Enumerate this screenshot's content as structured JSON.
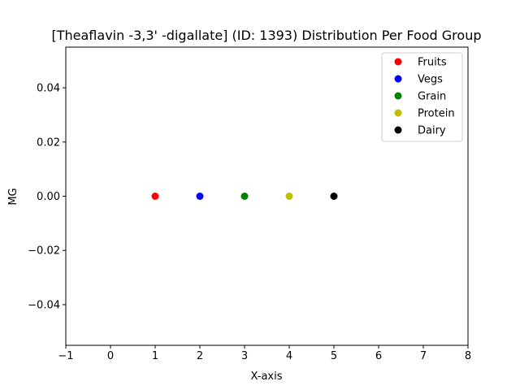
{
  "chart_data": {
    "type": "scatter",
    "title": "[Theaflavin -3,3' -digallate] (ID: 1393) Distribution Per Food Group",
    "xlabel": "X-axis",
    "ylabel": "MG",
    "xlim": [
      -1,
      8
    ],
    "ylim": [
      -0.055,
      0.055
    ],
    "xticks": [
      -1,
      0,
      1,
      2,
      3,
      4,
      5,
      6,
      7,
      8
    ],
    "xtick_labels": [
      "−1",
      "0",
      "1",
      "2",
      "3",
      "4",
      "5",
      "6",
      "7",
      "8"
    ],
    "yticks": [
      -0.04,
      -0.02,
      0.0,
      0.02,
      0.04
    ],
    "ytick_labels": [
      "−0.04",
      "−0.02",
      "0.00",
      "0.02",
      "0.04"
    ],
    "grid": false,
    "legend_position": "top-right",
    "series": [
      {
        "name": "Fruits",
        "color": "#ff0000",
        "points": [
          {
            "x": 1,
            "y": 0.0
          }
        ]
      },
      {
        "name": "Vegs",
        "color": "#0000ff",
        "points": [
          {
            "x": 2,
            "y": 0.0
          }
        ]
      },
      {
        "name": "Grain",
        "color": "#008000",
        "points": [
          {
            "x": 3,
            "y": 0.0
          }
        ]
      },
      {
        "name": "Protein",
        "color": "#bfbf00",
        "points": [
          {
            "x": 4,
            "y": 0.0
          }
        ]
      },
      {
        "name": "Dairy",
        "color": "#000000",
        "points": [
          {
            "x": 5,
            "y": 0.0
          }
        ]
      }
    ]
  }
}
